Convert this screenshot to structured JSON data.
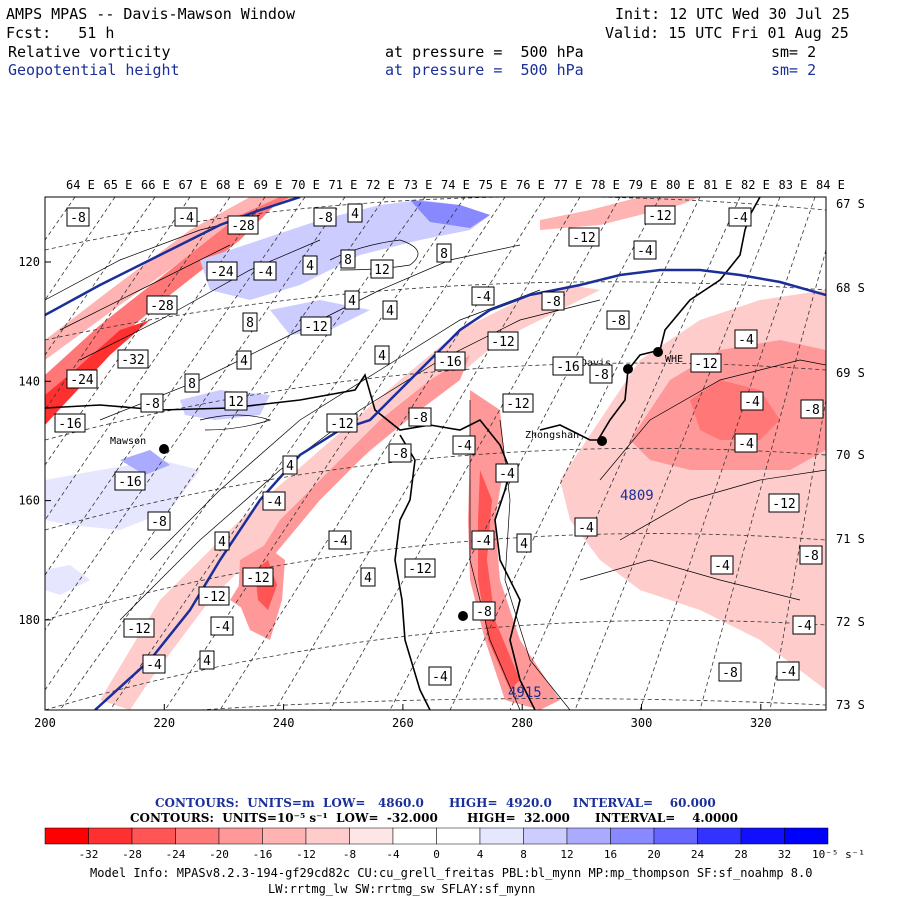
{
  "header": {
    "title": "AMPS MPAS -- Davis-Mawson Window",
    "init": "Init: 12 UTC Wed 30 Jul 25",
    "forecast": "Fcst:   51 h",
    "valid": "Valid: 15 UTC Fri 01 Aug 25",
    "field1": {
      "name": "Relative vorticity",
      "level": "at pressure =  500 hPa",
      "smooth": "sm= 2"
    },
    "field2": {
      "name": "Geopotential height",
      "level": "at pressure =  500 hPa",
      "smooth": "sm= 2"
    }
  },
  "map": {
    "lon_labels": [
      "64 E",
      "65 E",
      "66 E",
      "67 E",
      "68 E",
      "69 E",
      "70 E",
      "71 E",
      "72 E",
      "73 E",
      "74 E",
      "75 E",
      "76 E",
      "77 E",
      "78 E",
      "79 E",
      "80 E",
      "81 E",
      "82 E",
      "83 E",
      "84 E"
    ],
    "lat_labels": [
      "67 S",
      "68 S",
      "69 S",
      "70 S",
      "71 S",
      "72 S",
      "73 S"
    ],
    "x_ticks": [
      "200",
      "220",
      "240",
      "260",
      "280",
      "300",
      "320"
    ],
    "y_ticks": [
      "120",
      "140",
      "160",
      "180"
    ],
    "stations": [
      {
        "name": "Mawson"
      },
      {
        "name": "Davis"
      },
      {
        "name": "WHE"
      },
      {
        "name": "Zhongshan"
      }
    ],
    "height_labels": [
      "4809",
      "4915"
    ],
    "vort_labels": [
      "-8",
      "-4",
      "-28",
      "-8",
      "4",
      "-12",
      "-4",
      "-24",
      "-4",
      "4",
      "8",
      "8",
      "12",
      "-28",
      "4",
      "-12",
      "8",
      "4",
      "-4",
      "-12",
      "-4",
      "-8",
      "-32",
      "4",
      "4",
      "-16",
      "-12",
      "-8",
      "-24",
      "8",
      "12",
      "-8",
      "-16",
      "-12",
      "-8",
      "-12",
      "-16",
      "-8",
      "-12",
      "-4",
      "-4",
      "-8",
      "-4",
      "-4",
      "-8",
      "4",
      "-4",
      "-16",
      "-4",
      "-8",
      "-12",
      "-4",
      "4",
      "-4",
      "-4",
      "4",
      "4",
      "-12",
      "-4",
      "-8",
      "-12",
      "-12",
      "-4",
      "-12",
      "-8",
      "-4",
      "-4",
      "4",
      "-4",
      "-8",
      "-4"
    ]
  },
  "footer": {
    "contours1": "CONTOURS:  UNITS=m  LOW=   4860.0      HIGH=  4920.0     INTERVAL=    60.000",
    "contours2": "CONTOURS:  UNITS=10⁻⁵ s⁻¹  LOW=  -32.000       HIGH=  32.000      INTERVAL=    4.0000",
    "colorbar_labels": [
      "-32",
      "-28",
      "-24",
      "-20",
      "-16",
      "-12",
      "-8",
      "-4",
      "0",
      "4",
      "8",
      "12",
      "16",
      "20",
      "24",
      "28",
      "32"
    ],
    "colorbar_units": "10⁻⁵ s⁻¹",
    "colorbar_colors": [
      "#ff0000",
      "#ff3030",
      "#ff5555",
      "#ff7777",
      "#ff9999",
      "#ffb3b3",
      "#ffcccc",
      "#ffe6e6",
      "#ffffff",
      "#ffffff",
      "#e6e6ff",
      "#ccccff",
      "#aaaaff",
      "#8888ff",
      "#6666ff",
      "#3333ff",
      "#1010ff",
      "#0000ff"
    ],
    "model_info": "Model Info: MPASv8.2.3-194-gf29cd82c CU:cu_grell_freitas PBL:bl_mynn MP:mp_thompson SF:sf_noahmp 8.0",
    "model_info2": "LW:rrtmg_lw SW:rrtmg_sw SFLAY:sf_mynn"
  }
}
